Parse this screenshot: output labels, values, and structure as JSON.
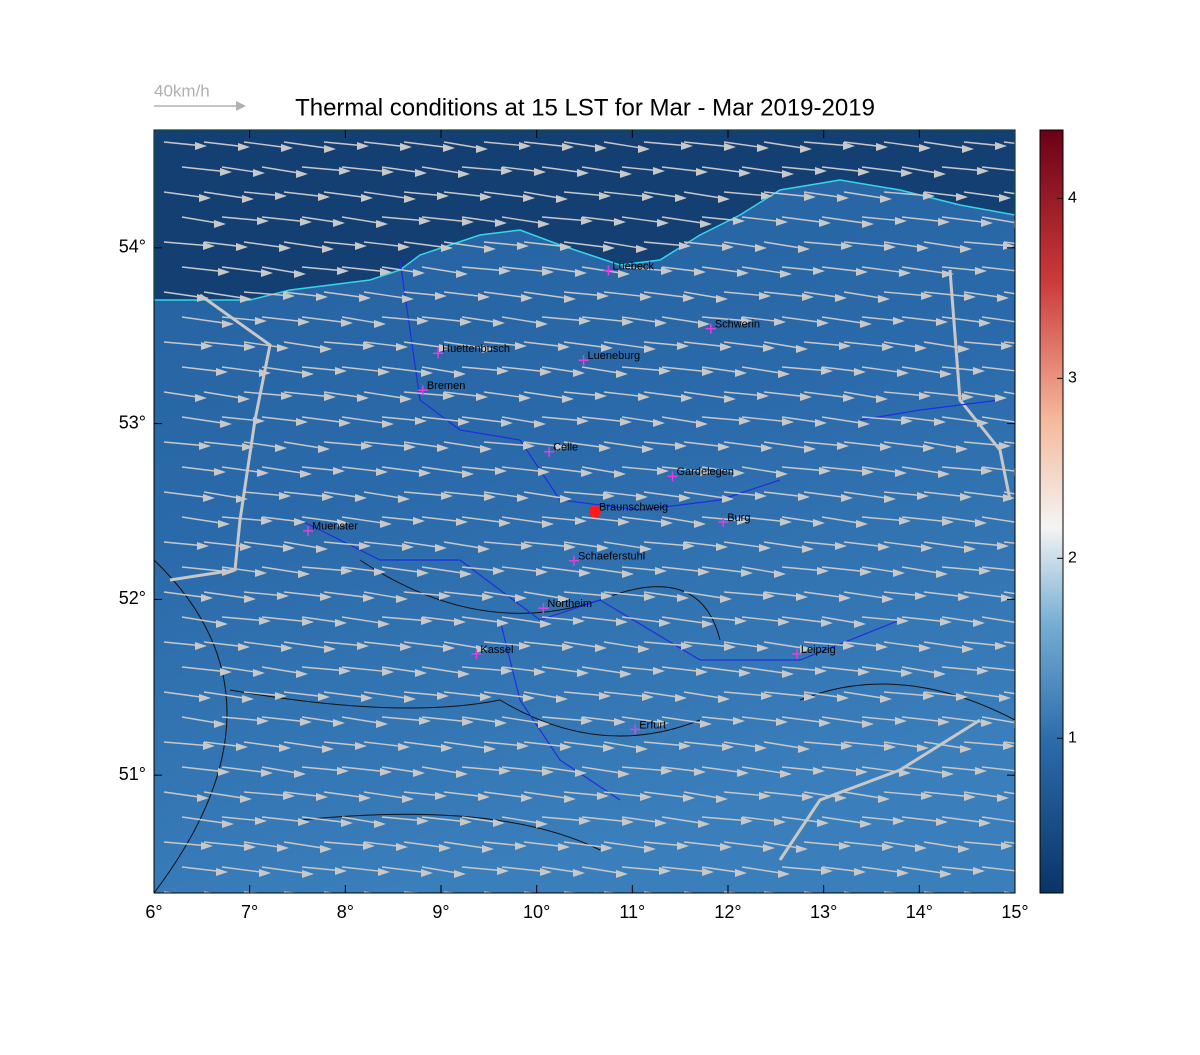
{
  "map": {
    "title": "Thermal conditions at 15 LST for Mar - Mar  2019-2019",
    "wind_reference": "40km/h",
    "lonlim": [
      6,
      15
    ],
    "latlim": [
      50.33,
      54.67
    ],
    "lonticks": [
      {
        "value": 6,
        "label": "6°"
      },
      {
        "value": 7,
        "label": "7°"
      },
      {
        "value": 8,
        "label": "8°"
      },
      {
        "value": 9,
        "label": "9°"
      },
      {
        "value": 10,
        "label": "10°"
      },
      {
        "value": 11,
        "label": "11°"
      },
      {
        "value": 12,
        "label": "12°"
      },
      {
        "value": 13,
        "label": "13°"
      },
      {
        "value": 14,
        "label": "14°"
      },
      {
        "value": 15,
        "label": "15°"
      }
    ],
    "latticks": [
      {
        "value": 51,
        "label": "51°"
      },
      {
        "value": 52,
        "label": "52°"
      },
      {
        "value": 53,
        "label": "53°"
      },
      {
        "value": 54,
        "label": "54°"
      }
    ],
    "colorbar": {
      "lim": [
        0.14,
        4.38
      ],
      "ticks": [
        1,
        2,
        3,
        4
      ]
    },
    "cities": [
      {
        "name": "Luebeck",
        "lon": 10.75,
        "lat": 53.87,
        "color": "#e040e0"
      },
      {
        "name": "Schwerin",
        "lon": 11.82,
        "lat": 53.54,
        "color": "#e040e0"
      },
      {
        "name": "Huettenbusch",
        "lon": 8.97,
        "lat": 53.4,
        "color": "#e040e0"
      },
      {
        "name": "Lueneburg",
        "lon": 10.49,
        "lat": 53.36,
        "color": "#e040e0"
      },
      {
        "name": "Bremen",
        "lon": 8.81,
        "lat": 53.19,
        "color": "#e040e0"
      },
      {
        "name": "Celle",
        "lon": 10.13,
        "lat": 52.84,
        "color": "#e040e0"
      },
      {
        "name": "Gardelegen",
        "lon": 11.42,
        "lat": 52.7,
        "color": "#e040e0"
      },
      {
        "name": "Braunschweig",
        "lon": 10.61,
        "lat": 52.5,
        "color": "#ff1a1a"
      },
      {
        "name": "Burg",
        "lon": 11.95,
        "lat": 52.44,
        "color": "#e040e0"
      },
      {
        "name": "Muenster",
        "lon": 7.61,
        "lat": 52.39,
        "color": "#e040e0"
      },
      {
        "name": "Schaeferstuhl",
        "lon": 10.39,
        "lat": 52.22,
        "color": "#e040e0"
      },
      {
        "name": "Northeim",
        "lon": 10.07,
        "lat": 51.95,
        "color": "#e040e0"
      },
      {
        "name": "Kassel",
        "lon": 9.37,
        "lat": 51.69,
        "color": "#e040e0"
      },
      {
        "name": "Leipzig",
        "lon": 12.72,
        "lat": 51.69,
        "color": "#e040e0"
      },
      {
        "name": "Erfurt",
        "lon": 11.03,
        "lat": 51.26,
        "color": "#e040e0"
      }
    ]
  }
}
